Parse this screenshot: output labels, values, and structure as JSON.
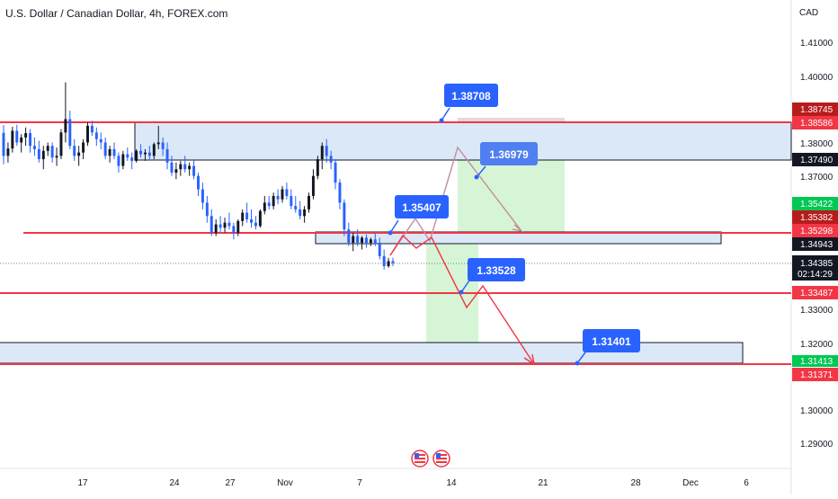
{
  "title": "U.S. Dollar / Canadian Dollar, 4h, FOREX.com",
  "currency_label": "CAD",
  "chart_data": {
    "type": "candlestick",
    "symbol": "USDCAD",
    "timeframe": "4h",
    "y_ticks": [
      "1.41000",
      "1.40000",
      "1.38000",
      "1.37000",
      "1.33000",
      "1.32000",
      "1.30000",
      "1.29000"
    ],
    "x_ticks": [
      "17",
      "24",
      "27",
      "Nov",
      "7",
      "14",
      "21",
      "28",
      "Dec",
      "6"
    ],
    "price_tags": [
      {
        "label": "1.38745",
        "color": "#b71c1c"
      },
      {
        "label": "1.38586",
        "color": "#f23645"
      },
      {
        "label": "1.37490",
        "color": "#131722"
      },
      {
        "label": "1.35422",
        "color": "#00c853"
      },
      {
        "label": "1.35382",
        "color": "#b71c1c"
      },
      {
        "label": "1.35298",
        "color": "#f23645"
      },
      {
        "label": "1.34943",
        "color": "#131722"
      },
      {
        "label": "1.34385",
        "color": "#131722"
      },
      {
        "label": "02:14:29",
        "color": "#131722"
      },
      {
        "label": "1.33487",
        "color": "#f23645"
      },
      {
        "label": "1.31413",
        "color": "#00c853"
      },
      {
        "label": "1.31371",
        "color": "#f23645"
      }
    ],
    "callouts": [
      {
        "label": "1.38708"
      },
      {
        "label": "1.36979"
      },
      {
        "label": "1.35407"
      },
      {
        "label": "1.33528"
      },
      {
        "label": "1.31401"
      }
    ],
    "horizontal_levels": [
      1.38586,
      1.35298,
      1.33487,
      1.31371
    ],
    "zones": [
      {
        "from": 1.3749,
        "to": 1.38586,
        "color": "#dbe8f8"
      },
      {
        "from": 1.34943,
        "to": 1.35298,
        "color": "#dbe8f8"
      },
      {
        "from": 1.31371,
        "to": 1.3195,
        "color": "#dbe8f8"
      }
    ],
    "colors": {
      "up": "#131722",
      "down": "#2962ff",
      "level": "#f23645",
      "callout": "#2962ff",
      "long_zone": "#d6f5d6",
      "short_zone": "#e7d6dc"
    },
    "candles": [
      [
        1.3829,
        1.3852,
        1.3735,
        1.376
      ],
      [
        1.376,
        1.38,
        1.374,
        1.3782
      ],
      [
        1.3782,
        1.3847,
        1.377,
        1.3835
      ],
      [
        1.3835,
        1.3853,
        1.379,
        1.38
      ],
      [
        1.38,
        1.3825,
        1.377,
        1.3815
      ],
      [
        1.3815,
        1.3845,
        1.379,
        1.3828
      ],
      [
        1.3828,
        1.384,
        1.377,
        1.379
      ],
      [
        1.379,
        1.3815,
        1.376,
        1.378
      ],
      [
        1.378,
        1.3805,
        1.374,
        1.375
      ],
      [
        1.375,
        1.379,
        1.372,
        1.3775
      ],
      [
        1.3775,
        1.38,
        1.376,
        1.379
      ],
      [
        1.379,
        1.38,
        1.374,
        1.3755
      ],
      [
        1.3755,
        1.3785,
        1.373,
        1.376
      ],
      [
        1.376,
        1.384,
        1.375,
        1.383
      ],
      [
        1.383,
        1.398,
        1.38,
        1.387
      ],
      [
        1.387,
        1.3895,
        1.378,
        1.379
      ],
      [
        1.379,
        1.381,
        1.3745,
        1.376
      ],
      [
        1.376,
        1.379,
        1.373,
        1.377
      ],
      [
        1.377,
        1.381,
        1.375,
        1.38
      ],
      [
        1.38,
        1.386,
        1.379,
        1.385
      ],
      [
        1.385,
        1.3865,
        1.382,
        1.383
      ],
      [
        1.383,
        1.3845,
        1.379,
        1.381
      ],
      [
        1.381,
        1.383,
        1.378,
        1.38
      ],
      [
        1.38,
        1.3815,
        1.375,
        1.376
      ],
      [
        1.376,
        1.379,
        1.374,
        1.378
      ],
      [
        1.378,
        1.38,
        1.375,
        1.376
      ],
      [
        1.376,
        1.377,
        1.371,
        1.373
      ],
      [
        1.373,
        1.3775,
        1.372,
        1.3765
      ],
      [
        1.3765,
        1.3785,
        1.3745,
        1.3755
      ],
      [
        1.3755,
        1.377,
        1.372,
        1.3745
      ],
      [
        1.3745,
        1.378,
        1.374,
        1.3775
      ],
      [
        1.3775,
        1.3795,
        1.3755,
        1.3765
      ],
      [
        1.3765,
        1.378,
        1.3745,
        1.377
      ],
      [
        1.377,
        1.379,
        1.375,
        1.376
      ],
      [
        1.376,
        1.38,
        1.375,
        1.3795
      ],
      [
        1.3795,
        1.385,
        1.378,
        1.38
      ],
      [
        1.38,
        1.3815,
        1.376,
        1.378
      ],
      [
        1.378,
        1.38,
        1.372,
        1.374
      ],
      [
        1.374,
        1.376,
        1.37,
        1.371
      ],
      [
        1.371,
        1.374,
        1.369,
        1.372
      ],
      [
        1.372,
        1.3745,
        1.37,
        1.3735
      ],
      [
        1.3735,
        1.376,
        1.371,
        1.372
      ],
      [
        1.372,
        1.374,
        1.37,
        1.373
      ],
      [
        1.373,
        1.375,
        1.369,
        1.37
      ],
      [
        1.37,
        1.371,
        1.364,
        1.366
      ],
      [
        1.366,
        1.368,
        1.36,
        1.362
      ],
      [
        1.362,
        1.364,
        1.356,
        1.358
      ],
      [
        1.358,
        1.36,
        1.352,
        1.353
      ],
      [
        1.353,
        1.357,
        1.352,
        1.3555
      ],
      [
        1.3555,
        1.358,
        1.353,
        1.3545
      ],
      [
        1.3545,
        1.3575,
        1.353,
        1.356
      ],
      [
        1.356,
        1.359,
        1.354,
        1.355
      ],
      [
        1.355,
        1.356,
        1.351,
        1.353
      ],
      [
        1.353,
        1.357,
        1.352,
        1.3565
      ],
      [
        1.3565,
        1.36,
        1.355,
        1.359
      ],
      [
        1.359,
        1.362,
        1.356,
        1.357
      ],
      [
        1.357,
        1.36,
        1.3545,
        1.356
      ],
      [
        1.356,
        1.358,
        1.354,
        1.355
      ],
      [
        1.355,
        1.36,
        1.3545,
        1.3595
      ],
      [
        1.3595,
        1.364,
        1.3585,
        1.362
      ],
      [
        1.362,
        1.364,
        1.36,
        1.361
      ],
      [
        1.361,
        1.365,
        1.36,
        1.364
      ],
      [
        1.364,
        1.366,
        1.3615,
        1.363
      ],
      [
        1.363,
        1.367,
        1.362,
        1.366
      ],
      [
        1.366,
        1.368,
        1.363,
        1.364
      ],
      [
        1.364,
        1.366,
        1.36,
        1.361
      ],
      [
        1.361,
        1.364,
        1.359,
        1.36
      ],
      [
        1.36,
        1.3625,
        1.357,
        1.358
      ],
      [
        1.358,
        1.361,
        1.356,
        1.36
      ],
      [
        1.36,
        1.365,
        1.359,
        1.364
      ],
      [
        1.364,
        1.372,
        1.363,
        1.37
      ],
      [
        1.37,
        1.376,
        1.369,
        1.375
      ],
      [
        1.375,
        1.38,
        1.372,
        1.379
      ],
      [
        1.379,
        1.381,
        1.374,
        1.376
      ],
      [
        1.376,
        1.3775,
        1.372,
        1.374
      ],
      [
        1.374,
        1.375,
        1.366,
        1.368
      ],
      [
        1.368,
        1.369,
        1.36,
        1.362
      ],
      [
        1.362,
        1.363,
        1.352,
        1.354
      ],
      [
        1.354,
        1.356,
        1.349,
        1.35
      ],
      [
        1.35,
        1.353,
        1.3475,
        1.352
      ],
      [
        1.352,
        1.354,
        1.349,
        1.35
      ],
      [
        1.35,
        1.352,
        1.348,
        1.3515
      ],
      [
        1.3515,
        1.3525,
        1.3485,
        1.35
      ],
      [
        1.35,
        1.3515,
        1.349,
        1.351
      ],
      [
        1.351,
        1.353,
        1.349,
        1.35
      ],
      [
        1.35,
        1.3515,
        1.345,
        1.346
      ],
      [
        1.346,
        1.348,
        1.342,
        1.343
      ],
      [
        1.343,
        1.3455,
        1.3425,
        1.3445
      ],
      [
        1.3445,
        1.3455,
        1.343,
        1.3439
      ]
    ]
  }
}
